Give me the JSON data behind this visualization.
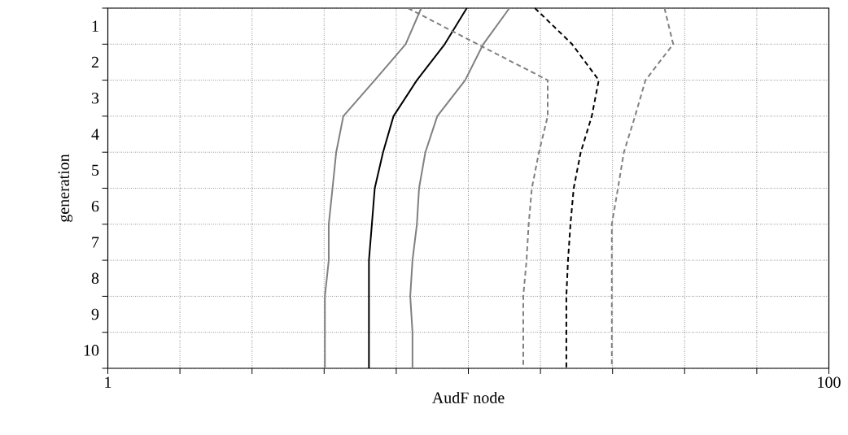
{
  "chart_data": {
    "type": "line",
    "orientation": "horizontal",
    "xlabel": "AudF node",
    "ylabel": "generation",
    "log": "x",
    "grid": true,
    "marker": "none",
    "x": [
      1,
      2,
      3,
      4,
      5,
      6,
      7,
      8,
      9,
      10,
      11
    ],
    "xlim": [
      1,
      100
    ],
    "xticks": [
      1,
      {
        "value": 1.585,
        "label": null
      },
      {
        "value": 2.512,
        "label": null
      },
      {
        "value": 3.981,
        "label": null
      },
      {
        "value": 6.31,
        "label": null
      },
      {
        "value": 10,
        "label": null
      },
      {
        "value": 15.85,
        "label": null
      },
      {
        "value": 25.12,
        "label": null
      },
      {
        "value": 39.81,
        "label": null
      },
      {
        "value": 63.1,
        "label": null
      },
      100
    ],
    "ylim": [
      11,
      1
    ],
    "yticks": [
      1,
      2,
      3,
      4,
      5,
      6,
      7,
      8,
      9,
      10,
      {
        "value": 11,
        "label": null
      }
    ],
    "series": [
      {
        "color": "#808080",
        "line_style": "solid",
        "values": [
          7.4,
          6.7,
          5.5,
          4.5,
          4.3,
          4.2,
          4.1,
          4.1,
          4.0,
          4.0,
          4.0
        ]
      },
      {
        "color": "#000000",
        "line_style": "solid",
        "values": [
          9.9,
          8.6,
          7.2,
          6.2,
          5.8,
          5.5,
          5.4,
          5.3,
          5.3,
          5.3,
          5.3
        ]
      },
      {
        "color": "#808080",
        "line_style": "solid",
        "values": [
          13,
          11,
          9.8,
          8.2,
          7.6,
          7.3,
          7.2,
          7.0,
          6.9,
          7.0,
          7.0
        ]
      },
      {
        "color": "#808080",
        "line_style": "dashed",
        "values": [
          6.8,
          10.6,
          16.6,
          16.6,
          15.7,
          15.0,
          14.7,
          14.5,
          14.2,
          14.2,
          14.2
        ]
      },
      {
        "color": "#000000",
        "line_style": "dashed",
        "values": [
          15.3,
          19.4,
          23,
          22,
          20.5,
          19.6,
          19.2,
          18.9,
          18.7,
          18.7,
          18.7
        ]
      },
      {
        "color": "#808080",
        "line_style": "dashed",
        "values": [
          35,
          37,
          31,
          29,
          27,
          26,
          25,
          25,
          25,
          25,
          25
        ]
      }
    ]
  }
}
